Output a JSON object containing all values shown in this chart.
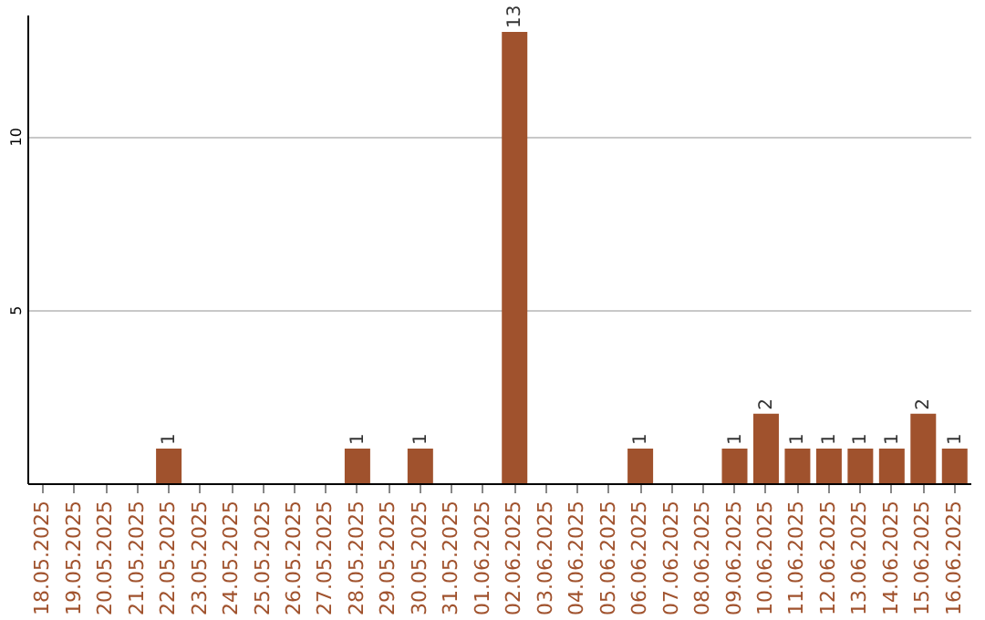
{
  "chart_data": {
    "type": "bar",
    "categories": [
      "18.05.2025",
      "19.05.2025",
      "20.05.2025",
      "21.05.2025",
      "22.05.2025",
      "23.05.2025",
      "24.05.2025",
      "25.05.2025",
      "26.05.2025",
      "27.05.2025",
      "28.05.2025",
      "29.05.2025",
      "30.05.2025",
      "31.05.2025",
      "01.06.2025",
      "02.06.2025",
      "03.06.2025",
      "04.06.2025",
      "05.06.2025",
      "06.06.2025",
      "07.06.2025",
      "08.06.2025",
      "09.06.2025",
      "10.06.2025",
      "11.06.2025",
      "12.06.2025",
      "13.06.2025",
      "14.06.2025",
      "15.06.2025",
      "16.06.2025"
    ],
    "values": [
      0,
      0,
      0,
      0,
      1,
      0,
      0,
      0,
      0,
      0,
      1,
      0,
      1,
      0,
      0,
      13,
      0,
      0,
      0,
      1,
      0,
      0,
      1,
      2,
      1,
      1,
      1,
      1,
      2,
      1
    ],
    "value_labels": [
      null,
      null,
      null,
      null,
      "1",
      null,
      null,
      null,
      null,
      null,
      "1",
      null,
      "1",
      null,
      null,
      "13",
      null,
      null,
      null,
      "1",
      null,
      null,
      "1",
      "2",
      "1",
      "1",
      "1",
      "1",
      "2",
      "1"
    ],
    "color": "#a0522d",
    "ylim": [
      0,
      13.5
    ],
    "yticks": [
      5,
      10
    ],
    "grid": "y"
  }
}
